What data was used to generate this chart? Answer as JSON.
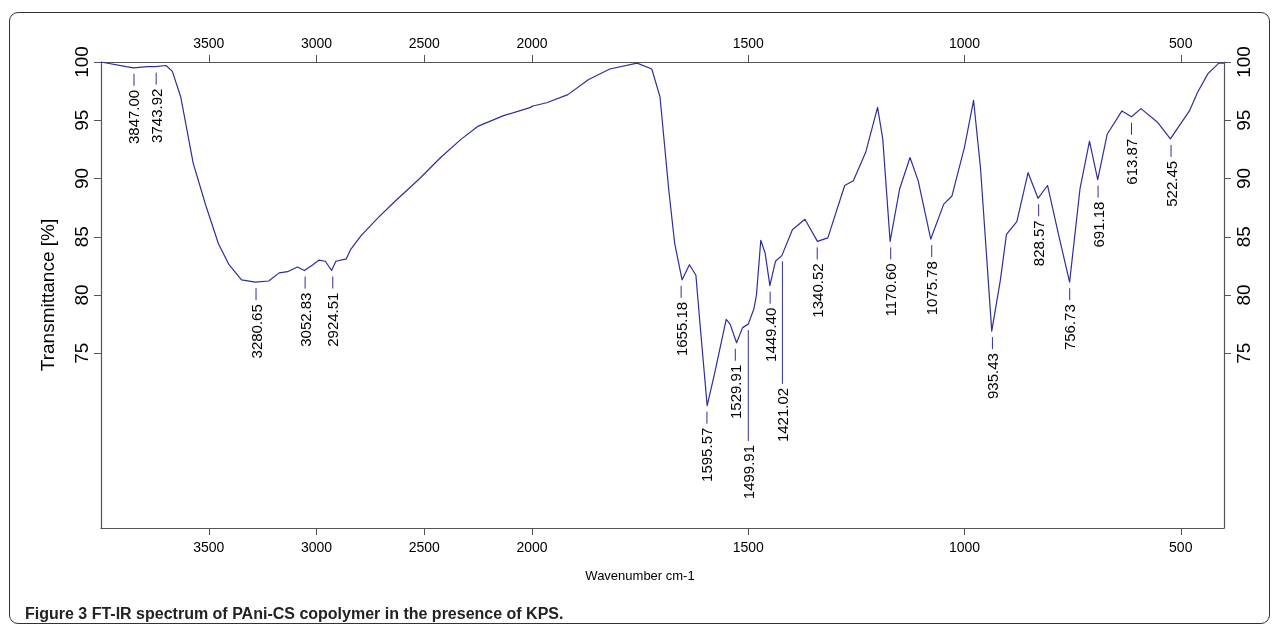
{
  "chart_data": [
    {
      "type": "line",
      "ylabel": "Transmittance [%]",
      "xlim": [
        4000,
        2000
      ],
      "xticks": [
        3500,
        3000,
        2500,
        2000
      ],
      "x2lim": [
        4000,
        2000
      ],
      "x2ticks": [
        3500,
        3000,
        2500,
        2000
      ],
      "ylim": [
        60,
        100
      ],
      "yticks": [
        75,
        80,
        85,
        90,
        95,
        100
      ],
      "series": [
        {
          "color": "#2e2e9e",
          "x": [
            4000,
            3883,
            3848,
            3786,
            3747,
            3698,
            3669,
            3630,
            3572,
            3514,
            3455,
            3406,
            3348,
            3284,
            3222,
            3173,
            3134,
            3089,
            3056,
            3017,
            2988,
            2959,
            2930,
            2910,
            2862,
            2842,
            2793,
            2716,
            2638,
            2521,
            2424,
            2327,
            2249,
            2132,
            2006,
            2000
          ],
          "values": [
            100,
            99.6,
            99.5,
            99.6,
            99.6,
            99.7,
            99.2,
            97.0,
            91.3,
            87.7,
            84.4,
            82.6,
            81.3,
            81.1,
            81.2,
            81.9,
            82.0,
            82.4,
            82.1,
            82.6,
            83.0,
            82.9,
            82.1,
            82.9,
            83.1,
            83.9,
            85.1,
            86.6,
            88.0,
            90.0,
            91.8,
            93.4,
            94.5,
            95.4,
            96.1,
            96.2
          ]
        }
      ],
      "annotations": [
        {
          "text": "3847.00",
          "x": 3847,
          "y": 99.5
        },
        {
          "text": "3743.92",
          "x": 3743.92,
          "y": 99.6
        },
        {
          "text": "3280.65",
          "x": 3280.65,
          "y": 81.1
        },
        {
          "text": "3052.83",
          "x": 3052.83,
          "y": 82.1
        },
        {
          "text": "2924.51",
          "x": 2924.51,
          "y": 82.1
        },
        "Figure 3 FT-IR spectrum of PAni-CS copolymer in the presence of KPS."
      ]
    },
    {
      "type": "line",
      "xlabel": "Wavenumber cm-1",
      "xlim": [
        2000,
        400
      ],
      "xticks": [
        1500,
        1000,
        500
      ],
      "x2lim": [
        2000,
        400
      ],
      "x2ticks": [
        1500,
        1000,
        500
      ],
      "ylim": [
        60,
        100
      ],
      "yticks": [
        75,
        80,
        85,
        90,
        95,
        100
      ],
      "series": [
        {
          "color": "#2e2e9e",
          "x": [
            2000,
            1966,
            1917,
            1869,
            1820,
            1757,
            1723,
            1704,
            1684,
            1670,
            1653,
            1636,
            1621,
            1612,
            1595,
            1577,
            1551,
            1542,
            1527,
            1513,
            1500,
            1487,
            1481,
            1471,
            1461,
            1450,
            1437,
            1422,
            1398,
            1369,
            1340,
            1316,
            1277,
            1257,
            1228,
            1201,
            1189,
            1172,
            1150,
            1126,
            1107,
            1078,
            1048,
            1029,
            1000,
            979,
            963,
            937,
            917,
            903,
            879,
            853,
            830,
            808,
            782,
            757,
            733,
            711,
            692,
            670,
            636,
            614,
            592,
            553,
            524,
            480,
            461,
            437,
            412,
            401
          ],
          "values": [
            96.2,
            96.5,
            97.2,
            98.5,
            99.4,
            99.9,
            99.4,
            97.0,
            89.1,
            84.4,
            81.3,
            82.6,
            81.7,
            77.7,
            70.5,
            73.4,
            77.9,
            77.5,
            75.9,
            77.2,
            77.5,
            78.8,
            80.0,
            84.7,
            83.6,
            80.8,
            82.9,
            83.4,
            85.6,
            86.5,
            84.6,
            84.9,
            89.4,
            89.8,
            92.3,
            96.1,
            93.4,
            84.6,
            89.1,
            91.8,
            89.8,
            84.8,
            87.8,
            88.5,
            92.7,
            96.7,
            90.9,
            76.9,
            81.3,
            85.2,
            86.3,
            90.5,
            88.3,
            89.4,
            85.1,
            81.1,
            89.1,
            93.2,
            89.9,
            93.8,
            95.8,
            95.3,
            96.0,
            94.8,
            93.4,
            95.8,
            97.4,
            99.0,
            99.9,
            99.9
          ]
        }
      ],
      "annotations": [
        {
          "text": "1655.18",
          "x": 1655.18,
          "y": 81.3
        },
        {
          "text": "1595.57",
          "x": 1595.57,
          "y": 70.5
        },
        {
          "text": "1529.91",
          "x": 1529.91,
          "y": 75.9
        },
        {
          "text": "1499.91",
          "x": 1499.91,
          "y": 77.5
        },
        {
          "text": "1449.40",
          "x": 1449.4,
          "y": 80.8
        },
        {
          "text": "1421.02",
          "x": 1421.02,
          "y": 83.4
        },
        {
          "text": "1340.52",
          "x": 1340.52,
          "y": 84.6
        },
        {
          "text": "1170.60",
          "x": 1170.6,
          "y": 84.6
        },
        {
          "text": "1075.78",
          "x": 1075.78,
          "y": 84.8
        },
        {
          "text": "935.43",
          "x": 935.43,
          "y": 76.9
        },
        {
          "text": "828.57",
          "x": 828.57,
          "y": 88.3
        },
        {
          "text": "756.73",
          "x": 756.73,
          "y": 81.1
        },
        {
          "text": "691.18",
          "x": 691.18,
          "y": 89.9
        },
        {
          "text": "613.87",
          "x": 613.87,
          "y": 95.3
        },
        {
          "text": "522.45",
          "x": 522.45,
          "y": 93.4
        }
      ]
    }
  ]
}
